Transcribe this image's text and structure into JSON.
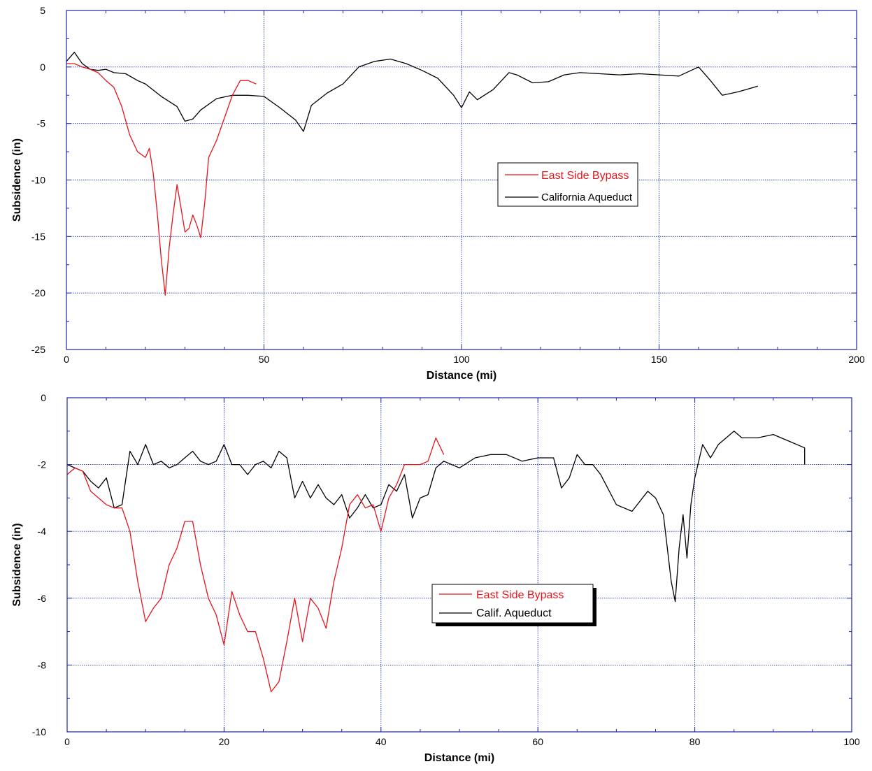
{
  "colors": {
    "red": "#e8141b",
    "black": "#000000",
    "grid": "#1e2fb4",
    "frame": "#1a24a8"
  },
  "chart_data": [
    {
      "type": "line",
      "xlabel": "Distance (mi)",
      "ylabel": "Subsidence (in)",
      "xlim": [
        0,
        200
      ],
      "ylim": [
        -25,
        5
      ],
      "xticks": [
        0,
        50,
        100,
        150,
        200
      ],
      "yticks": [
        5,
        0,
        -5,
        -10,
        -15,
        -20,
        -25
      ],
      "grid": true,
      "legend_placement": "center-right",
      "legend_shadow": false,
      "series": [
        {
          "name": "East Side Bypass",
          "color": "#e8141b",
          "x": [
            0,
            2,
            4,
            6,
            8,
            10,
            12,
            14,
            16,
            18,
            20,
            21,
            22,
            23,
            24,
            25,
            26,
            27,
            28,
            29,
            30,
            31,
            32,
            33,
            34,
            35,
            36,
            38,
            40,
            42,
            44,
            46,
            48
          ],
          "y": [
            0.3,
            0.3,
            0,
            -0.2,
            -0.5,
            -1.2,
            -1.8,
            -3.5,
            -6,
            -7.5,
            -8,
            -7.2,
            -9.5,
            -13,
            -17,
            -20.2,
            -16,
            -13,
            -10.4,
            -12.5,
            -14.6,
            -14.3,
            -13.1,
            -14,
            -15.1,
            -12,
            -8,
            -6.5,
            -4.5,
            -2.5,
            -1.2,
            -1.2,
            -1.5
          ]
        },
        {
          "name": "California Aqueduct",
          "color": "#000000",
          "x": [
            0,
            2,
            4,
            6,
            8,
            10,
            12,
            15,
            18,
            20,
            24,
            28,
            30,
            32,
            34,
            38,
            42,
            46,
            50,
            54,
            58,
            60,
            62,
            66,
            70,
            74,
            78,
            82,
            86,
            90,
            94,
            98,
            100,
            102,
            104,
            108,
            112,
            114,
            118,
            122,
            126,
            130,
            135,
            140,
            145,
            150,
            155,
            160,
            163,
            166,
            170,
            175
          ],
          "y": [
            0.5,
            1.3,
            0.3,
            -0.2,
            -0.3,
            -0.2,
            -0.5,
            -0.6,
            -1.2,
            -1.5,
            -2.6,
            -3.5,
            -4.8,
            -4.6,
            -3.8,
            -2.8,
            -2.5,
            -2.5,
            -2.6,
            -3.6,
            -4.7,
            -5.7,
            -3.4,
            -2.3,
            -1.5,
            0,
            0.5,
            0.7,
            0.3,
            -0.3,
            -1,
            -2.5,
            -3.6,
            -2.2,
            -2.9,
            -2,
            -0.5,
            -0.7,
            -1.4,
            -1.3,
            -0.7,
            -0.5,
            -0.6,
            -0.7,
            -0.6,
            -0.7,
            -0.8,
            0,
            -1.2,
            -2.5,
            -2.2,
            -1.7
          ]
        }
      ]
    },
    {
      "type": "line",
      "xlabel": "Distance (mi)",
      "ylabel": "Subsidence (in)",
      "xlim": [
        0,
        100
      ],
      "ylim": [
        -10,
        0
      ],
      "xticks": [
        0,
        20,
        40,
        60,
        80,
        100
      ],
      "yticks": [
        0,
        -2,
        -4,
        -6,
        -8,
        -10
      ],
      "grid": true,
      "legend_placement": "center",
      "legend_shadow": true,
      "series": [
        {
          "name": "East Side Bypass",
          "color": "#e8141b",
          "x": [
            0,
            1,
            2,
            3,
            4,
            5,
            6,
            7,
            8,
            9,
            10,
            11,
            12,
            13,
            14,
            15,
            16,
            17,
            18,
            19,
            20,
            21,
            22,
            23,
            24,
            25,
            26,
            27,
            28,
            29,
            30,
            31,
            32,
            33,
            34,
            35,
            36,
            37,
            38,
            39,
            40,
            41,
            42,
            43,
            44,
            45,
            46,
            47,
            48
          ],
          "y": [
            -2.3,
            -2.1,
            -2.2,
            -2.8,
            -3,
            -3.2,
            -3.3,
            -3.3,
            -4,
            -5.5,
            -6.7,
            -6.3,
            -6,
            -5,
            -4.5,
            -3.7,
            -3.7,
            -5,
            -6,
            -6.5,
            -7.4,
            -5.8,
            -6.5,
            -7,
            -7,
            -7.8,
            -8.8,
            -8.5,
            -7.3,
            -6,
            -7.3,
            -6,
            -6.3,
            -6.9,
            -5.5,
            -4.5,
            -3.2,
            -2.9,
            -3.3,
            -3.2,
            -4,
            -3,
            -2.6,
            -2,
            -2,
            -2,
            -1.9,
            -1.2,
            -1.7
          ]
        },
        {
          "name": "Calif. Aqueduct",
          "color": "#000000",
          "x": [
            0,
            1,
            2,
            3,
            4,
            5,
            6,
            7,
            8,
            9,
            10,
            11,
            12,
            13,
            14,
            15,
            16,
            17,
            18,
            19,
            20,
            21,
            22,
            23,
            24,
            25,
            26,
            27,
            28,
            29,
            30,
            31,
            32,
            33,
            34,
            35,
            36,
            37,
            38,
            39,
            40,
            41,
            42,
            43,
            44,
            45,
            46,
            47,
            48,
            50,
            52,
            54,
            56,
            58,
            60,
            62,
            63,
            64,
            65,
            66,
            67,
            68,
            70,
            72,
            74,
            75,
            76,
            76.5,
            77,
            77.5,
            78,
            78.5,
            79,
            79.5,
            80,
            81,
            82,
            83,
            84,
            85,
            86,
            88,
            90,
            92,
            94,
            94
          ],
          "y": [
            -2,
            -2.1,
            -2.2,
            -2.5,
            -2.7,
            -2.4,
            -3.3,
            -3.2,
            -1.6,
            -2,
            -1.4,
            -2,
            -1.9,
            -2.1,
            -2,
            -1.8,
            -1.6,
            -1.9,
            -2,
            -1.9,
            -1.4,
            -2,
            -2,
            -2.3,
            -2,
            -1.9,
            -2.1,
            -1.6,
            -1.8,
            -3,
            -2.5,
            -3,
            -2.6,
            -3,
            -3.2,
            -2.9,
            -3.6,
            -3.3,
            -2.9,
            -3.3,
            -3.2,
            -2.6,
            -2.8,
            -2.3,
            -3.6,
            -3,
            -2.9,
            -2.1,
            -1.9,
            -2.1,
            -1.8,
            -1.7,
            -1.7,
            -1.9,
            -1.8,
            -1.8,
            -2.7,
            -2.4,
            -1.7,
            -2,
            -2,
            -2.3,
            -3.2,
            -3.4,
            -2.8,
            -3,
            -3.5,
            -4.5,
            -5.5,
            -6.1,
            -4.5,
            -3.5,
            -4.8,
            -3.2,
            -2.4,
            -1.4,
            -1.8,
            -1.4,
            -1.2,
            -1,
            -1.2,
            -1.2,
            -1.1,
            -1.3,
            -1.5,
            -2
          ]
        }
      ]
    }
  ]
}
